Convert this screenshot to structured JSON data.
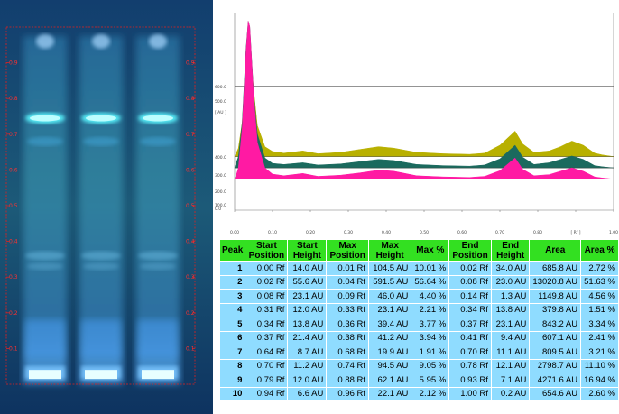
{
  "plate": {
    "tick_labels": [
      "0.9",
      "0.8",
      "0.7",
      "0.6",
      "0.5",
      "0.4",
      "0.3",
      "0.2",
      "0.1"
    ],
    "tick_values": [
      0.9,
      0.8,
      0.7,
      0.6,
      0.5,
      0.4,
      0.3,
      0.2,
      0.1
    ],
    "lanes": 3
  },
  "chart_data": {
    "type": "line",
    "x_ticks": [
      "0.00",
      "0.10",
      "0.20",
      "0.30",
      "0.40",
      "0.50",
      "0.60",
      "0.70",
      "0.80",
      "[ Rf ]",
      "1.00"
    ],
    "y_ticks": [
      "600.0",
      "500.0",
      "[ AU ]",
      "400.0",
      "300.0",
      "200.0",
      "100.0",
      "0.0"
    ],
    "xlim": [
      0,
      1
    ],
    "ylim": [
      0,
      700
    ],
    "series": [
      {
        "color": "#b8b000",
        "offset": 190,
        "points": [
          [
            0,
            0
          ],
          [
            0.005,
            15
          ],
          [
            0.01,
            30
          ],
          [
            0.02,
            120
          ],
          [
            0.03,
            330
          ],
          [
            0.036,
            420
          ],
          [
            0.04,
            405
          ],
          [
            0.05,
            240
          ],
          [
            0.06,
            110
          ],
          [
            0.08,
            35
          ],
          [
            0.1,
            18
          ],
          [
            0.13,
            12
          ],
          [
            0.18,
            20
          ],
          [
            0.22,
            10
          ],
          [
            0.28,
            15
          ],
          [
            0.33,
            25
          ],
          [
            0.38,
            35
          ],
          [
            0.42,
            30
          ],
          [
            0.48,
            15
          ],
          [
            0.55,
            10
          ],
          [
            0.62,
            8
          ],
          [
            0.66,
            12
          ],
          [
            0.7,
            40
          ],
          [
            0.74,
            90
          ],
          [
            0.76,
            45
          ],
          [
            0.79,
            15
          ],
          [
            0.83,
            20
          ],
          [
            0.86,
            35
          ],
          [
            0.89,
            55
          ],
          [
            0.92,
            40
          ],
          [
            0.95,
            12
          ],
          [
            0.97,
            6
          ],
          [
            1,
            0
          ]
        ]
      },
      {
        "color": "#1a6a5e",
        "offset": 150,
        "points": [
          [
            0,
            0
          ],
          [
            0.005,
            20
          ],
          [
            0.01,
            40
          ],
          [
            0.02,
            160
          ],
          [
            0.03,
            420
          ],
          [
            0.036,
            520
          ],
          [
            0.04,
            500
          ],
          [
            0.05,
            270
          ],
          [
            0.06,
            120
          ],
          [
            0.08,
            35
          ],
          [
            0.1,
            16
          ],
          [
            0.13,
            12
          ],
          [
            0.18,
            18
          ],
          [
            0.22,
            10
          ],
          [
            0.28,
            14
          ],
          [
            0.33,
            22
          ],
          [
            0.38,
            30
          ],
          [
            0.42,
            26
          ],
          [
            0.48,
            12
          ],
          [
            0.55,
            8
          ],
          [
            0.62,
            6
          ],
          [
            0.66,
            10
          ],
          [
            0.7,
            32
          ],
          [
            0.74,
            80
          ],
          [
            0.76,
            38
          ],
          [
            0.79,
            12
          ],
          [
            0.83,
            18
          ],
          [
            0.86,
            30
          ],
          [
            0.89,
            42
          ],
          [
            0.92,
            30
          ],
          [
            0.95,
            8
          ],
          [
            0.97,
            4
          ],
          [
            1,
            0
          ]
        ]
      },
      {
        "color": "#ff1aa3",
        "offset": 110,
        "points": [
          [
            0,
            0
          ],
          [
            0.005,
            18
          ],
          [
            0.01,
            40
          ],
          [
            0.02,
            180
          ],
          [
            0.03,
            450
          ],
          [
            0.036,
            560
          ],
          [
            0.04,
            540
          ],
          [
            0.05,
            300
          ],
          [
            0.06,
            130
          ],
          [
            0.08,
            40
          ],
          [
            0.1,
            18
          ],
          [
            0.13,
            12
          ],
          [
            0.18,
            20
          ],
          [
            0.22,
            10
          ],
          [
            0.28,
            14
          ],
          [
            0.33,
            22
          ],
          [
            0.38,
            32
          ],
          [
            0.42,
            28
          ],
          [
            0.48,
            12
          ],
          [
            0.55,
            8
          ],
          [
            0.62,
            6
          ],
          [
            0.66,
            10
          ],
          [
            0.7,
            30
          ],
          [
            0.74,
            75
          ],
          [
            0.76,
            35
          ],
          [
            0.79,
            12
          ],
          [
            0.83,
            16
          ],
          [
            0.86,
            28
          ],
          [
            0.89,
            40
          ],
          [
            0.92,
            28
          ],
          [
            0.95,
            8
          ],
          [
            0.97,
            4
          ],
          [
            1,
            0
          ]
        ]
      }
    ],
    "hline_value": 440
  },
  "table": {
    "headers": [
      "Peak",
      "Start Position",
      "Start Height",
      "Max Position",
      "Max Height",
      "Max %",
      "End Position",
      "End Height",
      "Area",
      "Area %"
    ],
    "rows": [
      [
        "1",
        "0.00 Rf",
        "14.0 AU",
        "0.01 Rf",
        "104.5 AU",
        "10.01 %",
        "0.02 Rf",
        "34.0 AU",
        "685.8 AU",
        "2.72 %"
      ],
      [
        "2",
        "0.02 Rf",
        "55.6 AU",
        "0.04 Rf",
        "591.5 AU",
        "56.64 %",
        "0.08 Rf",
        "23.0 AU",
        "13020.8 AU",
        "51.63 %"
      ],
      [
        "3",
        "0.08 Rf",
        "23.1 AU",
        "0.09 Rf",
        "46.0 AU",
        "4.40 %",
        "0.14 Rf",
        "1.3 AU",
        "1149.8 AU",
        "4.56 %"
      ],
      [
        "4",
        "0.31 Rf",
        "12.0 AU",
        "0.33 Rf",
        "23.1 AU",
        "2.21 %",
        "0.34 Rf",
        "13.8 AU",
        "379.8 AU",
        "1.51 %"
      ],
      [
        "5",
        "0.34 Rf",
        "13.8 AU",
        "0.36 Rf",
        "39.4 AU",
        "3.77 %",
        "0.37 Rf",
        "23.1 AU",
        "843.2 AU",
        "3.34 %"
      ],
      [
        "6",
        "0.37 Rf",
        "21.4 AU",
        "0.38 Rf",
        "41.2 AU",
        "3.94 %",
        "0.41 Rf",
        "9.4 AU",
        "607.1 AU",
        "2.41 %"
      ],
      [
        "7",
        "0.64 Rf",
        "8.7 AU",
        "0.68 Rf",
        "19.9 AU",
        "1.91 %",
        "0.70 Rf",
        "11.1 AU",
        "809.5 AU",
        "3.21 %"
      ],
      [
        "8",
        "0.70 Rf",
        "11.2 AU",
        "0.74 Rf",
        "94.5 AU",
        "9.05 %",
        "0.78 Rf",
        "12.1 AU",
        "2798.7 AU",
        "11.10 %"
      ],
      [
        "9",
        "0.79 Rf",
        "12.0 AU",
        "0.88 Rf",
        "62.1 AU",
        "5.95 %",
        "0.93 Rf",
        "7.1 AU",
        "4271.6 AU",
        "16.94 %"
      ],
      [
        "10",
        "0.94 Rf",
        "6.6 AU",
        "0.96 Rf",
        "22.1 AU",
        "2.12 %",
        "1.00 Rf",
        "0.2 AU",
        "654.6 AU",
        "2.60 %"
      ]
    ]
  }
}
